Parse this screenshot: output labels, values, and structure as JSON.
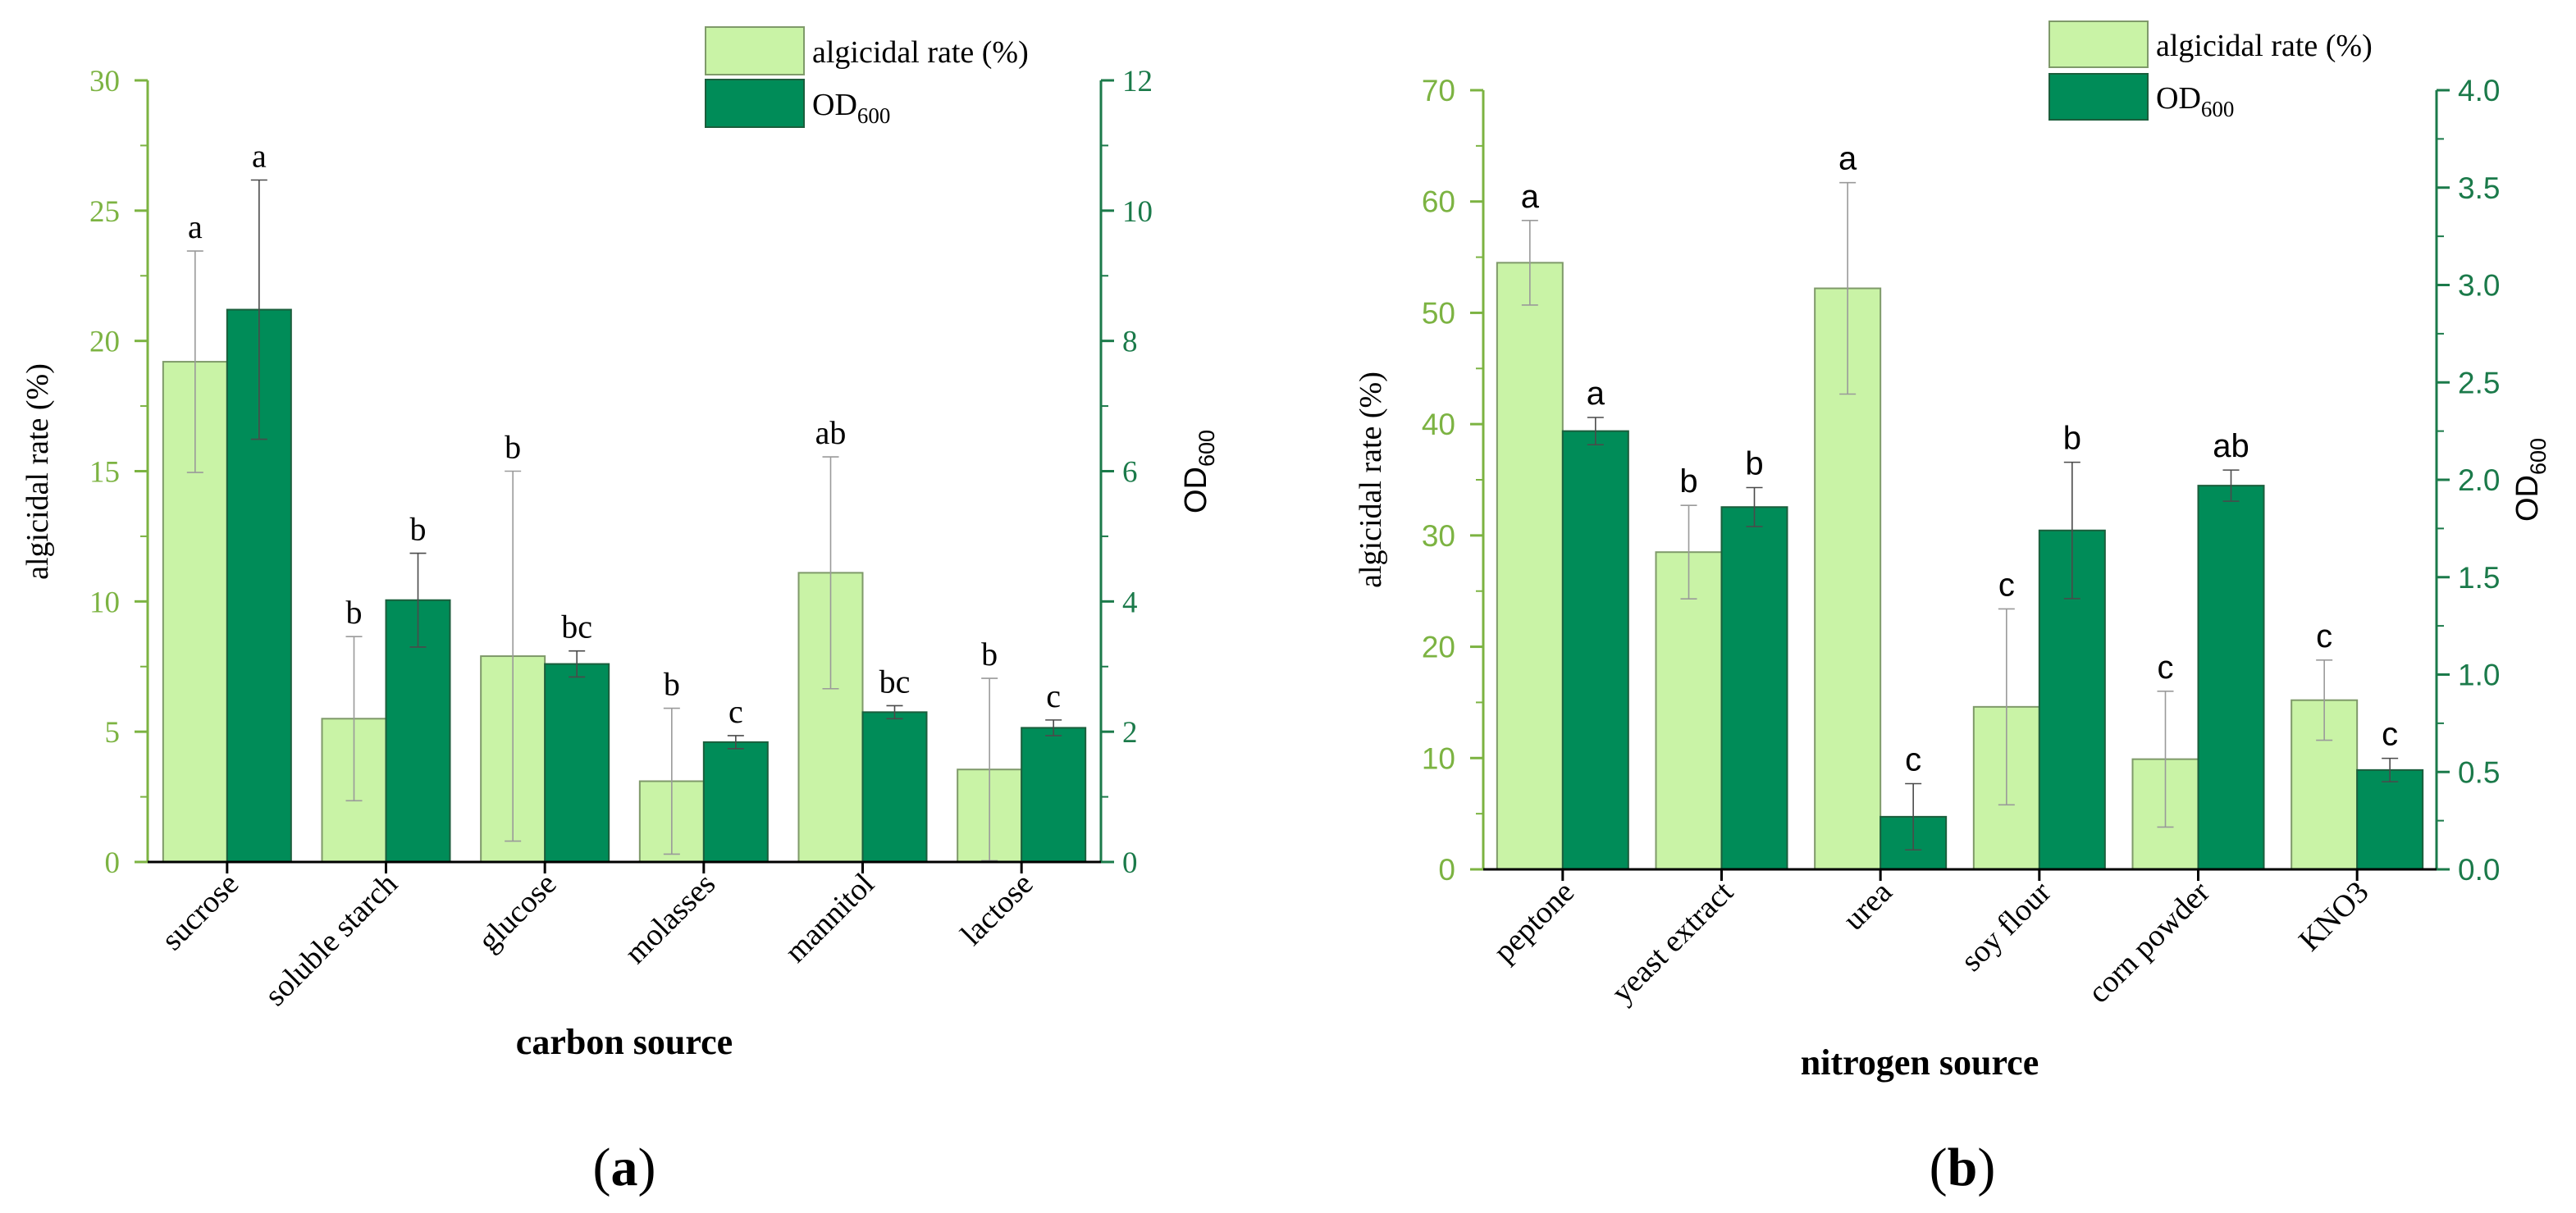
{
  "colors": {
    "light_bar": "#c9f3a6",
    "light_bar_stroke": "#7f9a6a",
    "dark_bar": "#008c58",
    "dark_bar_stroke": "#1b5e3c",
    "left_axis": "#7cb342",
    "right_axis": "#1b7a4a",
    "error_bar": "#9a9a9a",
    "text": "#000000"
  },
  "chart_data": [
    {
      "type": "bar",
      "panel_label": "(a)",
      "xlabel": "carbon source",
      "ylabel_left": "algicidal rate (%)",
      "ylabel_right": "OD600",
      "ylim_left": [
        0,
        30
      ],
      "yticks_left": [
        0,
        5,
        10,
        15,
        20,
        25,
        30
      ],
      "ylim_right": [
        0,
        12
      ],
      "yticks_right": [
        0,
        2,
        4,
        6,
        8,
        10,
        12
      ],
      "legend": [
        "algicidal rate (%)",
        "OD600"
      ],
      "legend_placement": "top-right",
      "categories": [
        "sucrose",
        "soluble starch",
        "glucose",
        "molasses",
        "mannitol",
        "lactose"
      ],
      "series": [
        {
          "name": "algicidal rate (%)",
          "axis": "left",
          "values": [
            19.2,
            5.5,
            7.9,
            3.1,
            11.1,
            3.55
          ],
          "errors": [
            4.25,
            3.15,
            7.1,
            2.8,
            4.45,
            3.5
          ],
          "letters": [
            "a",
            "b",
            "b",
            "b",
            "ab",
            "b"
          ]
        },
        {
          "name": "OD600",
          "axis": "right",
          "values": [
            8.48,
            4.02,
            3.04,
            1.84,
            2.3,
            2.06
          ],
          "errors": [
            1.99,
            0.72,
            0.2,
            0.1,
            0.1,
            0.12
          ],
          "letters": [
            "a",
            "b",
            "bc",
            "c",
            "bc",
            "c"
          ]
        }
      ]
    },
    {
      "type": "bar",
      "panel_label": "(b)",
      "xlabel": "nitrogen source",
      "ylabel_left": "algicidal rate (%)",
      "ylabel_right": "OD600",
      "ylim_left": [
        0,
        70
      ],
      "yticks_left": [
        0,
        10,
        20,
        30,
        40,
        50,
        60,
        70
      ],
      "ylim_right": [
        0,
        4
      ],
      "yticks_right": [
        "0.0",
        "0.5",
        "1.0",
        "1.5",
        "2.0",
        "2.5",
        "3.0",
        "3.5",
        "4.0"
      ],
      "legend": [
        "algicidal rate (%)",
        "OD600"
      ],
      "legend_placement": "top-right",
      "categories": [
        "peptone",
        "yeast extract",
        "urea",
        "soy flour",
        "corn powder",
        "KNO3"
      ],
      "series": [
        {
          "name": "algicidal rate (%)",
          "axis": "left",
          "values": [
            54.5,
            28.5,
            52.2,
            14.6,
            9.9,
            15.2
          ],
          "errors": [
            3.8,
            4.2,
            9.5,
            8.8,
            6.1,
            3.6
          ],
          "letters": [
            "a",
            "b",
            "a",
            "c",
            "c",
            "c"
          ]
        },
        {
          "name": "OD600",
          "axis": "right",
          "values": [
            2.25,
            1.86,
            0.27,
            1.74,
            1.97,
            0.51
          ],
          "errors": [
            0.07,
            0.1,
            0.17,
            0.35,
            0.08,
            0.06
          ],
          "letters": [
            "a",
            "b",
            "c",
            "b",
            "ab",
            "c"
          ]
        }
      ]
    }
  ]
}
